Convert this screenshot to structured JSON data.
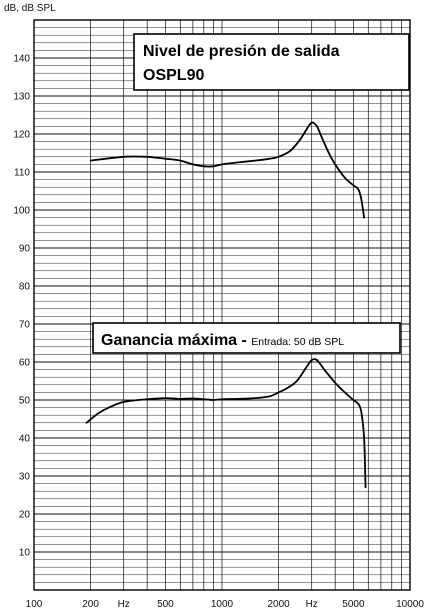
{
  "chart_data": {
    "type": "line",
    "title": "",
    "xlabel": "Hz",
    "ylabel": "dB, dB SPL",
    "x_scale": "log",
    "xlim": [
      100,
      10000
    ],
    "ylim": [
      0,
      150
    ],
    "grid": true,
    "x_tick_labels": [
      {
        "value": 100,
        "label": "100"
      },
      {
        "value": 200,
        "label": "200"
      },
      {
        "value": 300,
        "label": "Hz"
      },
      {
        "value": 500,
        "label": "500"
      },
      {
        "value": 1000,
        "label": "1000"
      },
      {
        "value": 2000,
        "label": "2000"
      },
      {
        "value": 3000,
        "label": "Hz"
      },
      {
        "value": 5000,
        "label": "5000"
      },
      {
        "value": 10000,
        "label": "10000"
      }
    ],
    "y_tick_labels": [
      {
        "value": 10,
        "label": "10"
      },
      {
        "value": 20,
        "label": "20"
      },
      {
        "value": 30,
        "label": "30"
      },
      {
        "value": 40,
        "label": "40"
      },
      {
        "value": 50,
        "label": "50"
      },
      {
        "value": 60,
        "label": "60"
      },
      {
        "value": 70,
        "label": "70"
      },
      {
        "value": 80,
        "label": "80"
      },
      {
        "value": 90,
        "label": "90"
      },
      {
        "value": 100,
        "label": "100"
      },
      {
        "value": 110,
        "label": "110"
      },
      {
        "value": 120,
        "label": "120"
      },
      {
        "value": 130,
        "label": "130"
      },
      {
        "value": 140,
        "label": "140"
      }
    ],
    "annotations": [
      {
        "lines": [
          "Nivel de presión de salida",
          "OSPL90"
        ],
        "anchor": "top-right"
      },
      {
        "main": "Ganancia máxima - ",
        "sub": "Entrada: 50 dB SPL",
        "anchor": "middle-right"
      }
    ],
    "series": [
      {
        "x": [
          200,
          300,
          400,
          500,
          600,
          700,
          800,
          900,
          1000,
          1200,
          1500,
          1800,
          2000,
          2300,
          2600,
          2800,
          3000,
          3200,
          3400,
          3700,
          4000,
          4500,
          5000,
          5300,
          5500,
          5700
        ],
        "values": [
          113,
          114,
          114,
          113.5,
          113,
          112,
          111.5,
          111.5,
          112,
          112.5,
          113,
          113.5,
          114,
          115.5,
          118.5,
          121,
          123,
          122,
          119,
          115,
          112,
          108.5,
          106.5,
          105.5,
          103,
          98
        ]
      },
      {
        "x": [
          190,
          220,
          250,
          300,
          400,
          500,
          600,
          700,
          800,
          900,
          1000,
          1200,
          1500,
          1800,
          2000,
          2200,
          2500,
          2800,
          3000,
          3200,
          3500,
          4000,
          4500,
          5000,
          5300,
          5500,
          5700,
          5800
        ],
        "values": [
          44,
          46.5,
          48,
          49.5,
          50.2,
          50.5,
          50.3,
          50.4,
          50.2,
          50,
          50.2,
          50.3,
          50.5,
          51,
          52,
          53,
          55,
          58.5,
          60.5,
          60.5,
          58,
          54.5,
          52,
          50,
          49,
          47,
          40,
          27
        ]
      }
    ]
  }
}
